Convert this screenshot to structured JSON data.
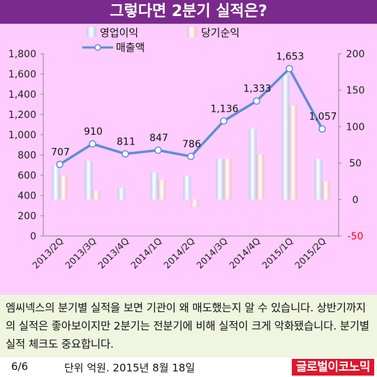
{
  "header": {
    "title": "그렇다면 2분기 실적은?"
  },
  "chart_data": {
    "type": "bar",
    "title": "",
    "categories": [
      "2013/2Q",
      "2013/3Q",
      "2013/4Q",
      "2014/1Q",
      "2014/2Q",
      "2014/3Q",
      "2014/4Q",
      "2015/1Q",
      "2015/2Q"
    ],
    "series": [
      {
        "name": "영업이익",
        "type": "bar",
        "axis": "right",
        "values": [
          48,
          53,
          16,
          37,
          33,
          56,
          97,
          171,
          56
        ]
      },
      {
        "name": "당기순익",
        "type": "bar",
        "axis": "right",
        "values": [
          33,
          12,
          0,
          27,
          -10,
          56,
          62,
          129,
          25
        ]
      },
      {
        "name": "매출액",
        "type": "line",
        "axis": "left",
        "values": [
          707,
          910,
          811,
          847,
          786,
          1136,
          1333,
          1653,
          1057
        ]
      }
    ],
    "data_labels": [
      "707",
      "910",
      "811",
      "847",
      "786",
      "1,136",
      "1,333",
      "1,653",
      "1,057"
    ],
    "left_axis": {
      "ylim": [
        0,
        1800
      ],
      "ticks": [
        "0",
        "200",
        "400",
        "600",
        "800",
        "1,000",
        "1,200",
        "1,400",
        "1,600",
        "1,800"
      ]
    },
    "right_axis": {
      "ylim": [
        -50,
        200
      ],
      "ticks": [
        "-50",
        "0",
        "50",
        "100",
        "150",
        "200"
      ]
    },
    "legend_position": "top",
    "colors": {
      "bar1": "#b9c9ee",
      "bar2": "#f0bcbc",
      "line": "#5b8dd9",
      "negative_tick": "#ff0000"
    }
  },
  "caption": {
    "text": "엠씨넥스의 분기별 실적을 보면 기관이 왜 매도했는지 알 수 있습니다. 상반기까지의 실적은 좋아보이지만 2분기는 전분기에 비해 실적이 크게 악화됐습니다. 분기별 실적 체크도 중요합니다."
  },
  "footer": {
    "page": "6/6",
    "unit_date": "단위 억원. 2015년 8월 18일",
    "brand": "글로벌이코노믹"
  }
}
